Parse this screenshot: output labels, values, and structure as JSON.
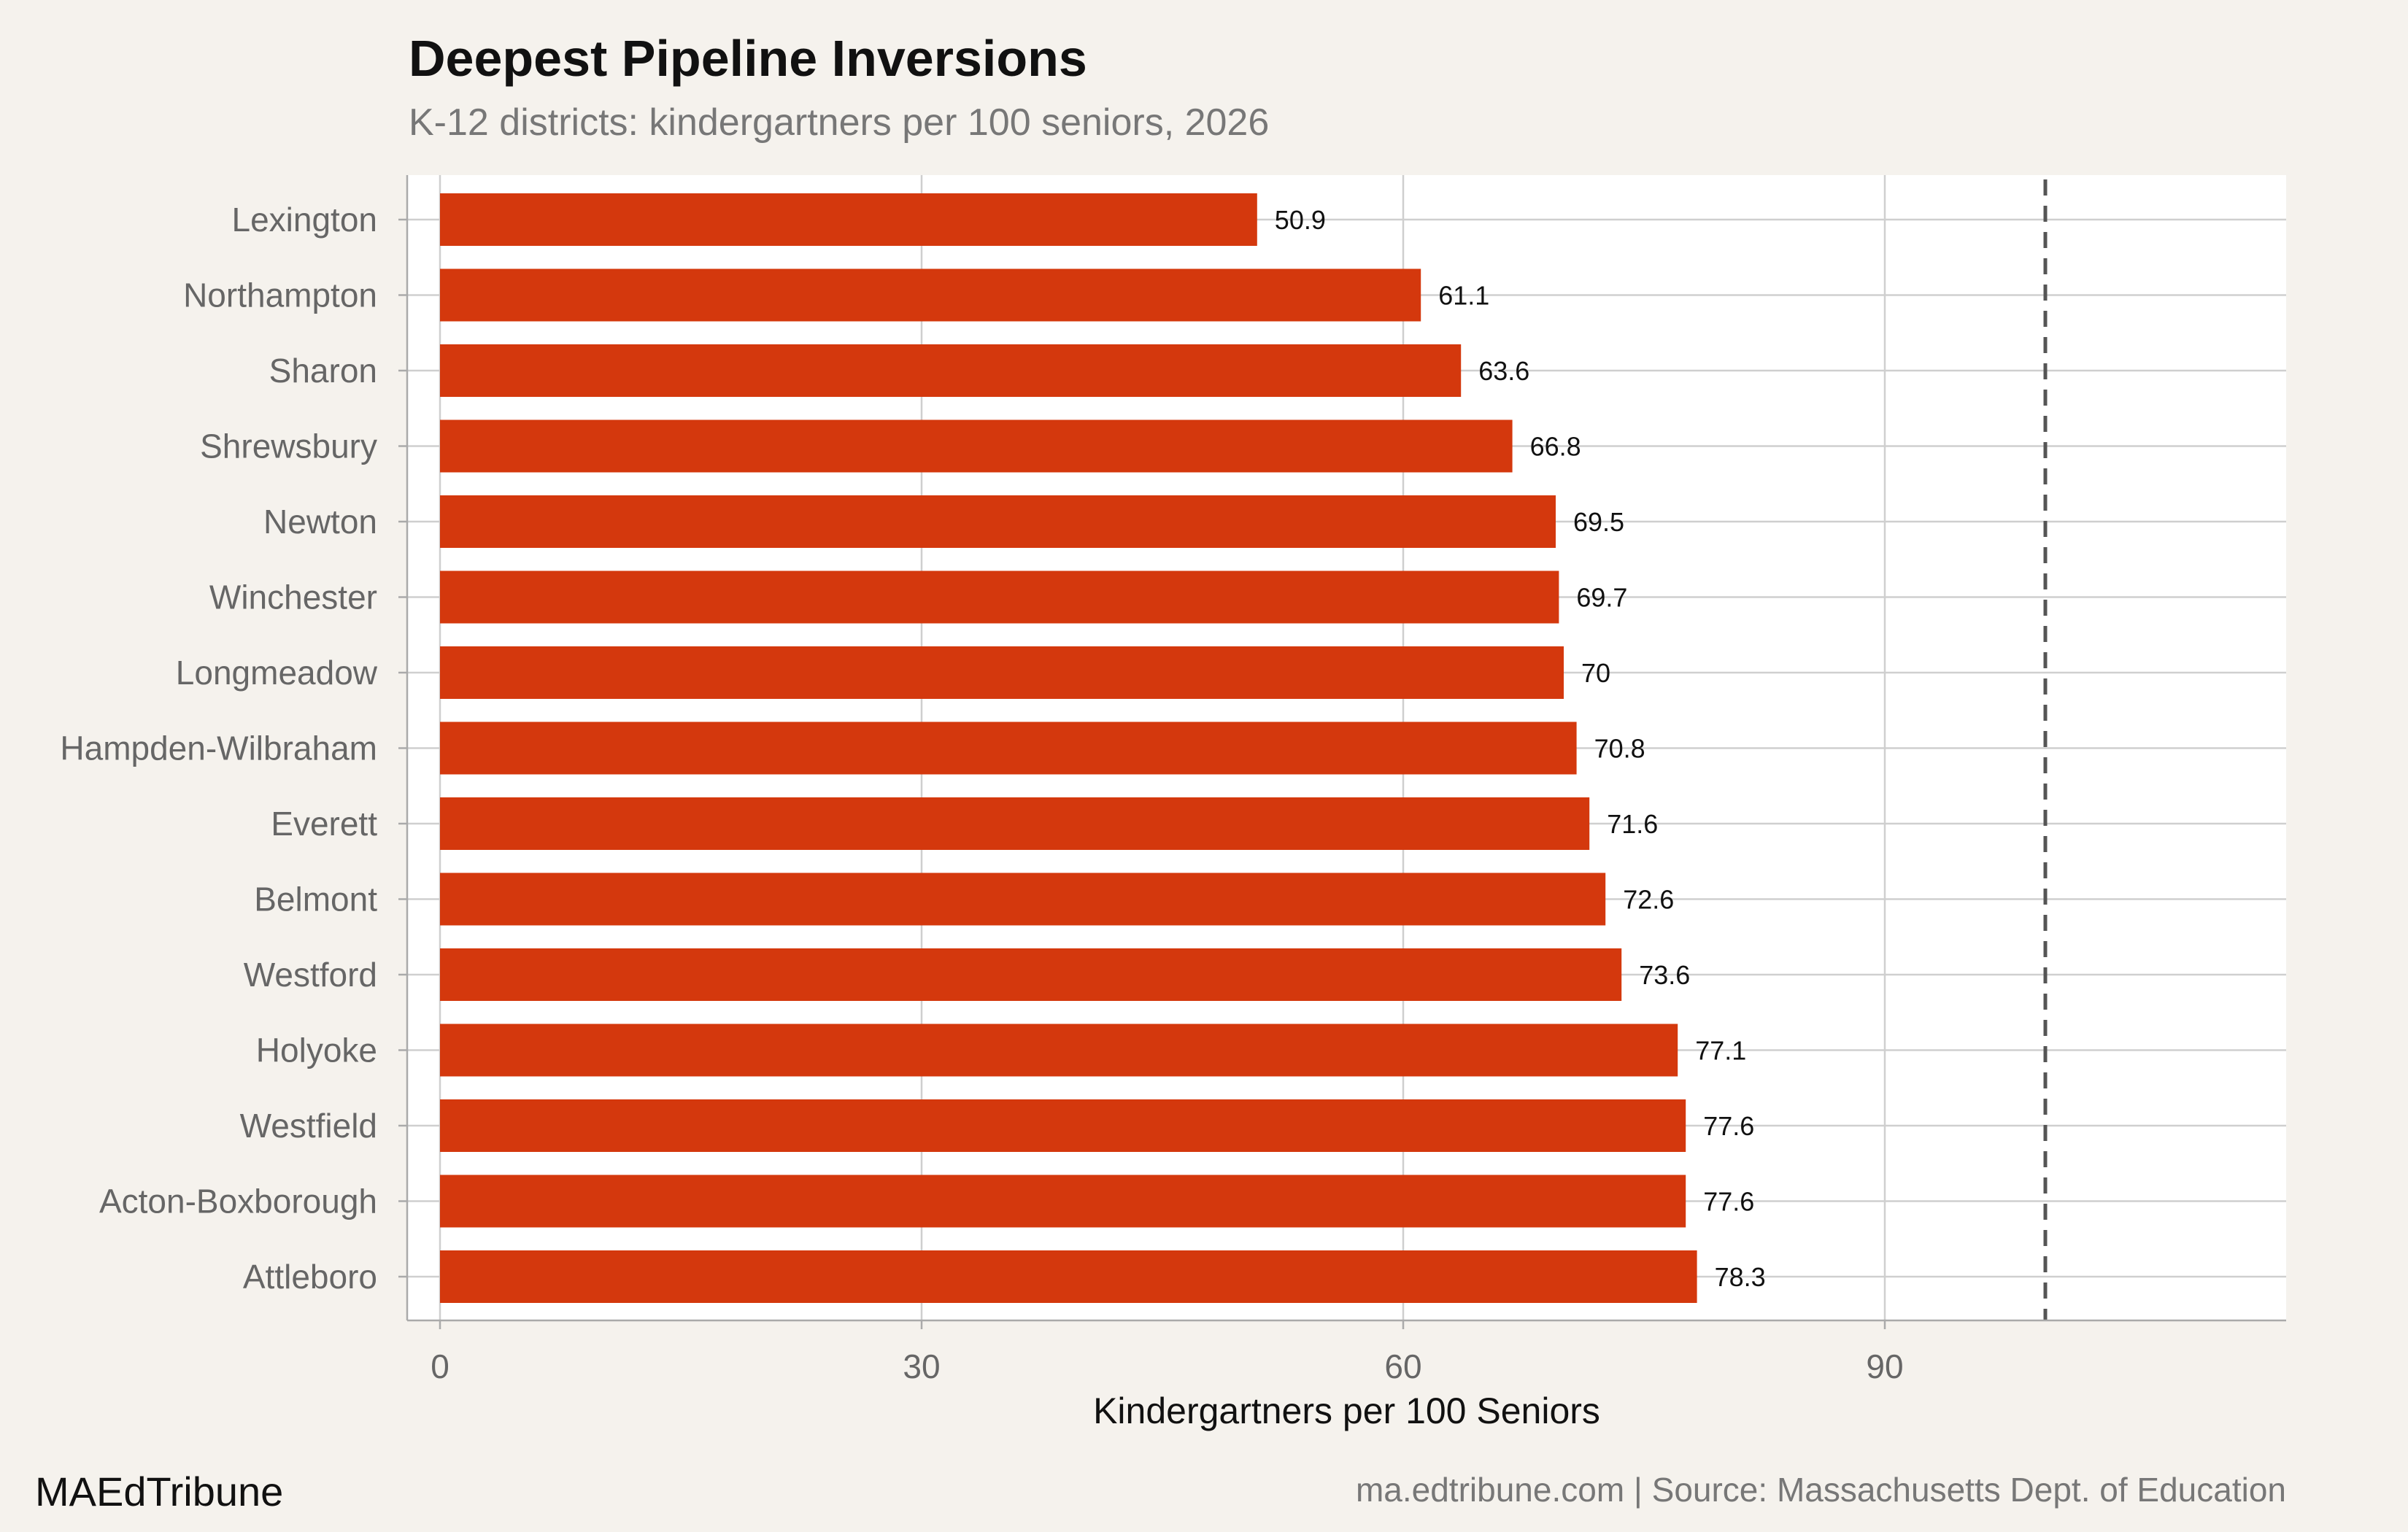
{
  "header": {
    "title": "Deepest Pipeline Inversions",
    "subtitle": "K-12 districts: kindergartners per 100 seniors, 2026"
  },
  "footer": {
    "brand": "MAEdTribune",
    "source": "ma.edtribune.com | Source: Massachusetts Dept. of Education"
  },
  "colors": {
    "bar": "#d4380d",
    "panel": "#ffffff",
    "background": "#f5f2ed",
    "grid": "#cfcfcf",
    "reference_line": "#555555"
  },
  "chart_data": {
    "type": "bar",
    "orientation": "horizontal",
    "title": "Deepest Pipeline Inversions",
    "subtitle": "K-12 districts: kindergartners per 100 seniors, 2026",
    "xlabel": "Kindergartners per 100 Seniors",
    "ylabel": "",
    "xlim": [
      0,
      115
    ],
    "xticks": [
      0,
      30,
      60,
      90
    ],
    "reference_line": 100,
    "grid": true,
    "categories": [
      "Lexington",
      "Northampton",
      "Sharon",
      "Shrewsbury",
      "Newton",
      "Winchester",
      "Longmeadow",
      "Hampden-Wilbraham",
      "Everett",
      "Belmont",
      "Westford",
      "Holyoke",
      "Westfield",
      "Acton-Boxborough",
      "Attleboro"
    ],
    "values": [
      50.9,
      61.1,
      63.6,
      66.8,
      69.5,
      69.7,
      70,
      70.8,
      71.6,
      72.6,
      73.6,
      77.1,
      77.6,
      77.6,
      78.3
    ],
    "value_labels": [
      "50.9",
      "61.1",
      "63.6",
      "66.8",
      "69.5",
      "69.7",
      "70",
      "70.8",
      "71.6",
      "72.6",
      "73.6",
      "77.1",
      "77.6",
      "77.6",
      "78.3"
    ]
  }
}
